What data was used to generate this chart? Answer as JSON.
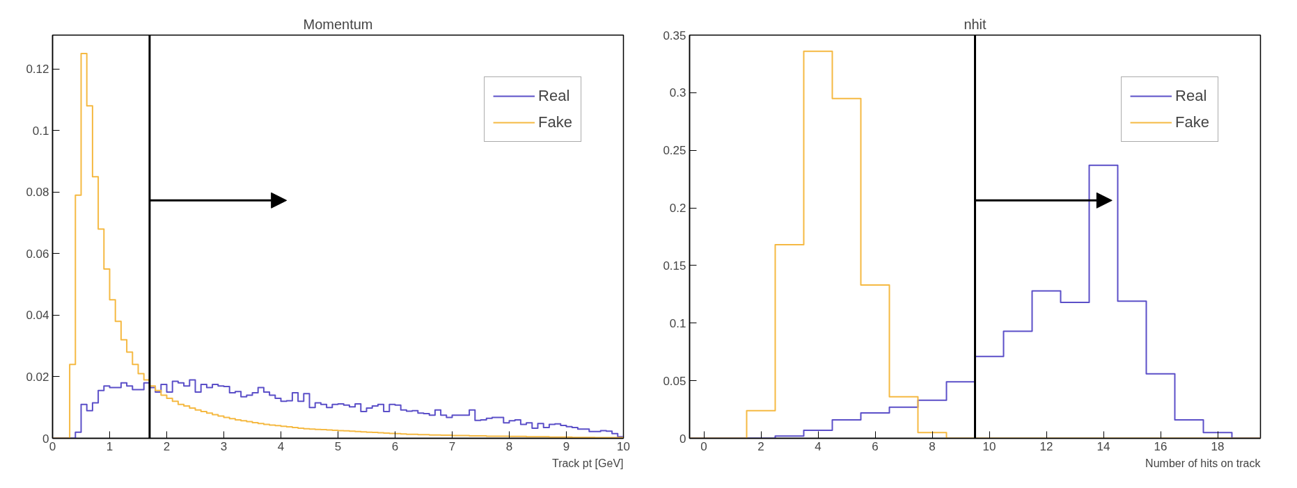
{
  "chart_data": [
    {
      "type": "histogram",
      "title": "Momentum",
      "xlabel": "Track pt [GeV]",
      "bins": [
        0,
        0.1,
        0.2,
        0.3,
        0.4,
        0.5,
        0.6,
        0.7,
        0.8,
        0.9,
        1,
        1.1,
        1.2,
        1.3,
        1.4,
        1.5,
        1.6,
        1.7,
        1.8,
        1.9,
        2,
        2.1,
        2.2,
        2.3,
        2.4,
        2.5,
        2.6,
        2.7,
        2.8,
        2.9,
        3,
        3.1,
        3.2,
        3.3,
        3.4,
        3.5,
        3.6,
        3.7,
        3.8,
        3.9,
        4,
        4.1,
        4.2,
        4.3,
        4.4,
        4.5,
        4.6,
        4.7,
        4.8,
        4.9,
        5,
        5.1,
        5.2,
        5.3,
        5.4,
        5.5,
        5.6,
        5.7,
        5.8,
        5.9,
        6,
        6.1,
        6.2,
        6.3,
        6.4,
        6.5,
        6.6,
        6.7,
        6.8,
        6.9,
        7,
        7.1,
        7.2,
        7.3,
        7.4,
        7.5,
        7.6,
        7.7,
        7.8,
        7.9,
        8,
        8.1,
        8.2,
        8.3,
        8.4,
        8.5,
        8.6,
        8.7,
        8.8,
        8.9,
        9,
        9.1,
        9.2,
        9.3,
        9.4,
        9.5,
        9.6,
        9.7,
        9.8,
        9.9,
        10
      ],
      "series": [
        {
          "name": "Real",
          "color": "#5b4fc8",
          "values": [
            0,
            0,
            0,
            0,
            0.002,
            0.011,
            0.009,
            0.0115,
            0.0155,
            0.017,
            0.0165,
            0.0165,
            0.018,
            0.017,
            0.0158,
            0.0158,
            0.018,
            0.0165,
            0.015,
            0.0175,
            0.015,
            0.0185,
            0.018,
            0.017,
            0.019,
            0.015,
            0.0175,
            0.0165,
            0.0175,
            0.017,
            0.0168,
            0.0148,
            0.0152,
            0.0135,
            0.014,
            0.0148,
            0.0165,
            0.015,
            0.014,
            0.013,
            0.012,
            0.0122,
            0.0148,
            0.012,
            0.0145,
            0.01,
            0.0115,
            0.011,
            0.01,
            0.011,
            0.0112,
            0.0108,
            0.0102,
            0.0112,
            0.0087,
            0.0098,
            0.0105,
            0.011,
            0.0087,
            0.011,
            0.0108,
            0.0092,
            0.0088,
            0.009,
            0.0082,
            0.008,
            0.0075,
            0.0092,
            0.0075,
            0.0068,
            0.0075,
            0.0075,
            0.0075,
            0.0092,
            0.0058,
            0.006,
            0.0065,
            0.0068,
            0.0068,
            0.005,
            0.0057,
            0.006,
            0.0045,
            0.005,
            0.0033,
            0.0048,
            0.0035,
            0.0045,
            0.0047,
            0.0042,
            0.0038,
            0.0035,
            0.003,
            0.003,
            0.0022,
            0.0022,
            0.0025,
            0.0023,
            0.0015,
            0.0005
          ]
        },
        {
          "name": "Fake",
          "color": "#f5b942",
          "values": [
            0,
            0,
            0,
            0.024,
            0.079,
            0.125,
            0.108,
            0.085,
            0.068,
            0.055,
            0.045,
            0.038,
            0.032,
            0.028,
            0.024,
            0.021,
            0.019,
            0.017,
            0.0155,
            0.014,
            0.013,
            0.012,
            0.011,
            0.0105,
            0.0098,
            0.0092,
            0.0087,
            0.0082,
            0.0077,
            0.0072,
            0.0068,
            0.0064,
            0.006,
            0.0057,
            0.0054,
            0.0051,
            0.0048,
            0.0045,
            0.0043,
            0.0041,
            0.0039,
            0.0037,
            0.0035,
            0.0033,
            0.0031,
            0.003,
            0.0029,
            0.0028,
            0.0027,
            0.0026,
            0.0025,
            0.0024,
            0.0023,
            0.0022,
            0.0021,
            0.002,
            0.0019,
            0.0018,
            0.0017,
            0.0016,
            0.0015,
            0.0014,
            0.0013,
            0.0013,
            0.0012,
            0.0012,
            0.0011,
            0.0011,
            0.001,
            0.001,
            0.0009,
            0.0009,
            0.0009,
            0.0008,
            0.0008,
            0.0008,
            0.0007,
            0.0007,
            0.0007,
            0.0007,
            0.0006,
            0.0006,
            0.0006,
            0.0005,
            0.0005,
            0.0005,
            0.0005,
            0.0004,
            0.0004,
            0.0004,
            0.0004,
            0.0003,
            0.0003,
            0.0003,
            0.0003,
            0.0002,
            0.0002,
            0.0002,
            0.0002,
            0.0002
          ]
        }
      ],
      "xlim": [
        0,
        10
      ],
      "ylim": [
        0,
        0.131
      ],
      "xticks": [
        0,
        1,
        2,
        3,
        4,
        5,
        6,
        7,
        8,
        9,
        10
      ],
      "yticks": [
        0,
        0.02,
        0.04,
        0.06,
        0.08,
        0.1,
        0.12
      ],
      "ref_lines": [
        {
          "axis": "x",
          "value": 1.7,
          "label": null,
          "color": "#000000"
        }
      ],
      "legend": "top right"
    },
    {
      "type": "histogram",
      "title": "nhit",
      "xlabel": "Number of hits on track",
      "bins": [
        -0.5,
        0.5,
        1.5,
        2.5,
        3.5,
        4.5,
        5.5,
        6.5,
        7.5,
        8.5,
        9.5,
        10.5,
        11.5,
        12.5,
        13.5,
        14.5,
        15.5,
        16.5,
        17.5,
        18.5,
        19.5
      ],
      "series": [
        {
          "name": "Real",
          "color": "#5b4fc8",
          "values": [
            0,
            0,
            0,
            0.002,
            0.007,
            0.016,
            0.022,
            0.027,
            0.033,
            0.049,
            0.071,
            0.093,
            0.128,
            0.118,
            0.237,
            0.119,
            0.056,
            0.016,
            0.005,
            0
          ]
        },
        {
          "name": "Fake",
          "color": "#f5b942",
          "values": [
            0,
            0,
            0.024,
            0.168,
            0.336,
            0.295,
            0.133,
            0.036,
            0.005,
            0,
            0,
            0,
            0,
            0,
            0,
            0,
            0,
            0,
            0,
            0
          ]
        }
      ],
      "xlim": [
        -0.5,
        19.5
      ],
      "ylim": [
        0,
        0.35
      ],
      "xticks": [
        0,
        2,
        4,
        6,
        8,
        10,
        12,
        14,
        16,
        18
      ],
      "yticks": [
        0,
        0.05,
        0.1,
        0.15,
        0.2,
        0.25,
        0.3,
        0.35
      ],
      "ref_lines": [
        {
          "axis": "x",
          "value": 9.5,
          "label": null,
          "color": "#000000"
        }
      ],
      "legend": "top right"
    }
  ]
}
